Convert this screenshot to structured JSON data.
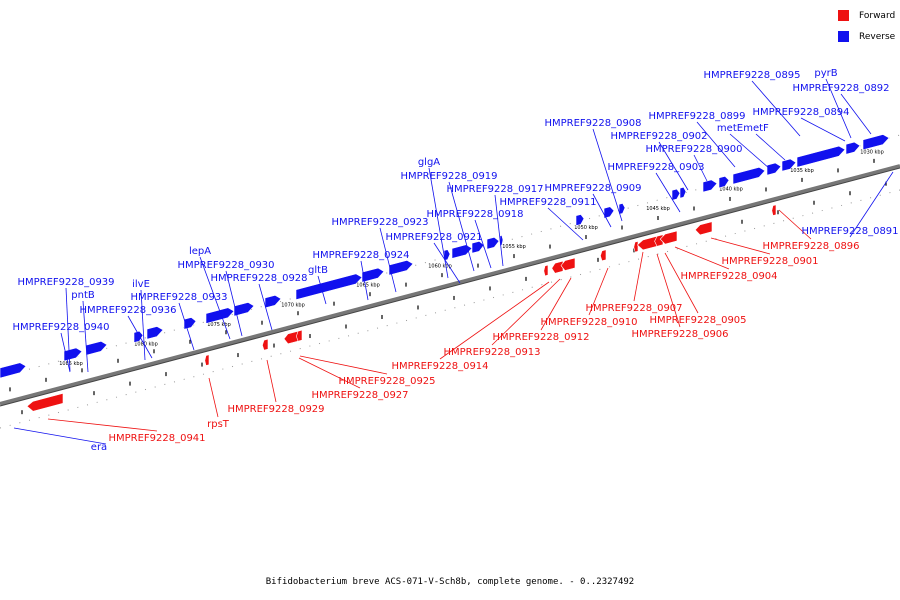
{
  "legend": {
    "forward_label": "Forward",
    "reverse_label": "Reverse",
    "forward_color": "#ee1111",
    "reverse_color": "#1111ee"
  },
  "caption": "Bifidobacterium breve ACS-071-V-Sch8b, complete genome. - 0..2327492",
  "ticks": [
    "1030 kbp",
    "1035 kbp",
    "1040 kbp",
    "1045 kbp",
    "1050 kbp",
    "1055 kbp",
    "1060 kbp",
    "1065 kbp",
    "1070 kbp",
    "1075 kbp",
    "1080 kbp",
    "1085 kbp"
  ],
  "reverse_genes": [
    "HMPREF9228_0895",
    "pyrB",
    "HMPREF9228_0892",
    "HMPREF9228_0899",
    "metE",
    "metF",
    "HMPREF9228_0894",
    "HMPREF9228_0902",
    "HMPREF9228_0908",
    "HMPREF9228_0900",
    "HMPREF9228_0903",
    "HMPREF9228_0909",
    "HMPREF9228_0911",
    "glgA",
    "HMPREF9228_0919",
    "HMPREF9228_0917",
    "HMPREF9228_0918",
    "HMPREF9228_0923",
    "HMPREF9228_0921",
    "HMPREF9228_0924",
    "gltB",
    "lepA",
    "HMPREF9228_0930",
    "HMPREF9228_0928",
    "HMPREF9228_0939",
    "pntB",
    "ilvE",
    "HMPREF9228_0933",
    "HMPREF9228_0936",
    "HMPREF9228_0940",
    "HMPREF9228_0891",
    "era"
  ],
  "forward_genes": [
    "HMPREF9228_0896",
    "HMPREF9228_0901",
    "HMPREF9228_0904",
    "HMPREF9228_0907",
    "HMPREF9228_0905",
    "HMPREF9228_0910",
    "HMPREF9228_0906",
    "HMPREF9228_0912",
    "HMPREF9228_0913",
    "HMPREF9228_0914",
    "HMPREF9228_0925",
    "HMPREF9228_0927",
    "HMPREF9228_0929",
    "rpsT",
    "HMPREF9228_0941"
  ]
}
